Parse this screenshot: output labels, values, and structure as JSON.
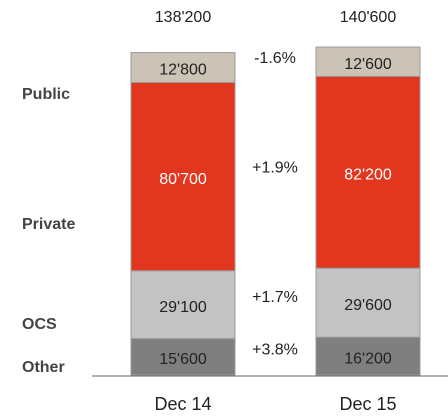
{
  "chart_data": {
    "type": "stacked_bar",
    "categories": [
      "Dec 14",
      "Dec 15"
    ],
    "totals": [
      138200,
      140600
    ],
    "total_labels": [
      "138'200",
      "140'600"
    ],
    "ylim": [
      0,
      140600
    ],
    "series": [
      {
        "name": "Other",
        "color": "#7f7f7f",
        "text_color": "#222222",
        "values": [
          15600,
          16200
        ],
        "value_labels": [
          "15'600",
          "16'200"
        ],
        "change": "+3.8%"
      },
      {
        "name": "OCS",
        "color": "#c3c3c3",
        "text_color": "#222222",
        "values": [
          29100,
          29600
        ],
        "value_labels": [
          "29'100",
          "29'600"
        ],
        "change": "+1.7%"
      },
      {
        "name": "Private",
        "color": "#e2361f",
        "text_color": "#ffffff",
        "values": [
          80700,
          82200
        ],
        "value_labels": [
          "80'700",
          "82'200"
        ],
        "change": "+1.9%"
      },
      {
        "name": "Public",
        "color": "#cbc3b6",
        "text_color": "#222222",
        "values": [
          12800,
          12600
        ],
        "value_labels": [
          "12'800",
          "12'600"
        ],
        "change": "-1.6%"
      }
    ]
  }
}
